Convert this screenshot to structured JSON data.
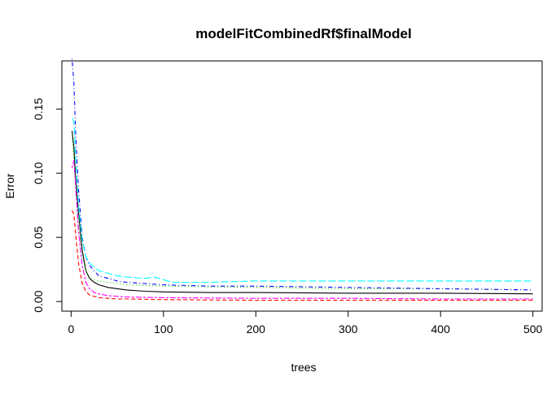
{
  "chart_data": {
    "type": "line",
    "title": "modelFitCombinedRf$finalModel",
    "xlabel": "trees",
    "ylabel": "Error",
    "xlim": [
      -10,
      510
    ],
    "ylim": [
      -0.0075,
      0.1875
    ],
    "x_ticks": [
      0,
      100,
      200,
      300,
      400,
      500
    ],
    "x_tick_labels": [
      "0",
      "100",
      "200",
      "300",
      "400",
      "500"
    ],
    "y_ticks": [
      0.0,
      0.05,
      0.1,
      0.15
    ],
    "y_tick_labels": [
      "0.00",
      "0.05",
      "0.10",
      "0.15"
    ],
    "grid": false,
    "legend": "none",
    "series": [
      {
        "color": "#000000",
        "line_style": "solid",
        "x": [
          1,
          3,
          5,
          8,
          12,
          16,
          20,
          25,
          30,
          40,
          50,
          60,
          80,
          100,
          150,
          200,
          300,
          400,
          500
        ],
        "y": [
          0.133,
          0.12,
          0.095,
          0.07,
          0.04,
          0.024,
          0.018,
          0.015,
          0.013,
          0.011,
          0.01,
          0.009,
          0.008,
          0.0075,
          0.007,
          0.007,
          0.0065,
          0.0065,
          0.006
        ]
      },
      {
        "color": "#ff0000",
        "line_style": "dashed",
        "x": [
          1,
          3,
          5,
          8,
          12,
          16,
          20,
          25,
          30,
          40,
          50,
          60,
          100,
          200,
          300,
          400,
          500
        ],
        "y": [
          0.071,
          0.068,
          0.052,
          0.03,
          0.014,
          0.008,
          0.005,
          0.004,
          0.003,
          0.0025,
          0.002,
          0.002,
          0.0015,
          0.001,
          0.001,
          0.001,
          0.001
        ]
      },
      {
        "color": "#00cd00",
        "line_style": "dotted",
        "x": [
          1,
          3,
          5,
          8,
          12,
          16,
          20,
          25,
          30,
          40,
          50,
          60,
          100,
          200,
          300,
          400,
          500
        ],
        "y": [
          0.13,
          0.11,
          0.088,
          0.06,
          0.035,
          0.024,
          0.019,
          0.017,
          0.016,
          0.015,
          0.014,
          0.013,
          0.012,
          0.011,
          0.01,
          0.01,
          0.009
        ]
      },
      {
        "color": "#0000ff",
        "line_style": "dotdash",
        "x": [
          1,
          3,
          5,
          8,
          12,
          16,
          20,
          25,
          30,
          40,
          50,
          60,
          80,
          100,
          150,
          200,
          300,
          400,
          500
        ],
        "y": [
          0.189,
          0.17,
          0.13,
          0.088,
          0.05,
          0.035,
          0.028,
          0.024,
          0.02,
          0.018,
          0.016,
          0.015,
          0.014,
          0.013,
          0.012,
          0.012,
          0.011,
          0.01,
          0.009
        ]
      },
      {
        "color": "#00ffff",
        "line_style": "longdash",
        "x": [
          1,
          3,
          5,
          8,
          12,
          16,
          20,
          25,
          30,
          40,
          50,
          60,
          80,
          90,
          100,
          110,
          150,
          200,
          250,
          300,
          400,
          500
        ],
        "y": [
          0.143,
          0.14,
          0.11,
          0.075,
          0.048,
          0.035,
          0.03,
          0.027,
          0.024,
          0.022,
          0.02,
          0.019,
          0.018,
          0.019,
          0.017,
          0.015,
          0.015,
          0.016,
          0.016,
          0.016,
          0.016,
          0.016
        ]
      },
      {
        "color": "#ff00ff",
        "line_style": "twodash",
        "x": [
          1,
          3,
          5,
          8,
          12,
          16,
          20,
          25,
          30,
          40,
          50,
          60,
          100,
          200,
          300,
          400,
          500
        ],
        "y": [
          0.104,
          0.11,
          0.09,
          0.055,
          0.028,
          0.015,
          0.01,
          0.007,
          0.006,
          0.0045,
          0.004,
          0.0035,
          0.003,
          0.0025,
          0.0025,
          0.002,
          0.002
        ]
      }
    ]
  }
}
